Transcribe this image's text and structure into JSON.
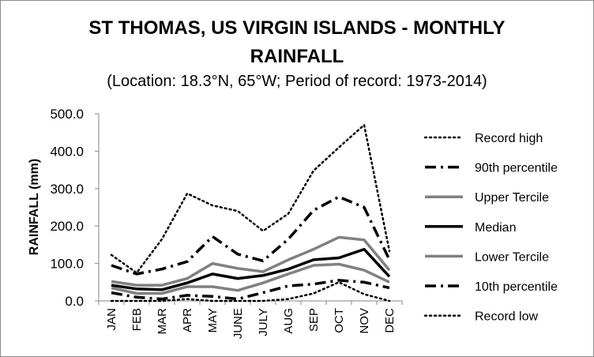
{
  "chart_data": {
    "type": "line",
    "title": "ST THOMAS, US VIRGIN ISLANDS - MONTHLY RAINFALL",
    "title_line1": "ST THOMAS, US VIRGIN ISLANDS - MONTHLY",
    "title_line2": "RAINFALL",
    "subtitle": "(Location: 18.3°N, 65°W; Period of record: 1973-2014)",
    "xlabel": "",
    "ylabel": "RAINFALL (mm)",
    "ylim": [
      0,
      500
    ],
    "yticks": [
      "500.0",
      "400.0",
      "300.0",
      "200.0",
      "100.0",
      "0.0"
    ],
    "yticks_values": [
      500,
      400,
      300,
      200,
      100,
      0
    ],
    "categories": [
      "JAN",
      "FEB",
      "MAR",
      "APR",
      "MAY",
      "JUNE",
      "JULY",
      "AUG",
      "SEP",
      "OCT",
      "NOV",
      "DEC"
    ],
    "grid": "horizontal none; vertical none",
    "legend_placement": "right",
    "series": [
      {
        "name": "Record high",
        "style": "dotted",
        "color": "#000000",
        "values": [
          123,
          75,
          165,
          287,
          255,
          240,
          187,
          233,
          348,
          410,
          470,
          133
        ]
      },
      {
        "name": "90th percentile",
        "style": "dashdot",
        "color": "#000000",
        "values": [
          95,
          72,
          85,
          105,
          172,
          125,
          107,
          165,
          242,
          278,
          250,
          110
        ]
      },
      {
        "name": "Upper Tercile",
        "style": "solid",
        "color": "#808080",
        "values": [
          52,
          42,
          42,
          60,
          100,
          87,
          78,
          110,
          138,
          170,
          163,
          82
        ]
      },
      {
        "name": "Median",
        "style": "solid",
        "color": "#000000",
        "values": [
          42,
          32,
          30,
          48,
          72,
          60,
          68,
          85,
          110,
          115,
          138,
          65
        ]
      },
      {
        "name": "Lower Tercile",
        "style": "solid",
        "color": "#808080",
        "values": [
          35,
          20,
          20,
          38,
          38,
          28,
          48,
          72,
          95,
          98,
          82,
          50
        ]
      },
      {
        "name": "10th percentile",
        "style": "dashdot",
        "color": "#000000",
        "values": [
          22,
          10,
          5,
          15,
          12,
          5,
          22,
          40,
          45,
          55,
          50,
          35
        ]
      },
      {
        "name": "Record low",
        "style": "dotted",
        "color": "#000000",
        "values": [
          0,
          0,
          0,
          5,
          0,
          0,
          0,
          5,
          20,
          50,
          18,
          0
        ]
      }
    ]
  }
}
